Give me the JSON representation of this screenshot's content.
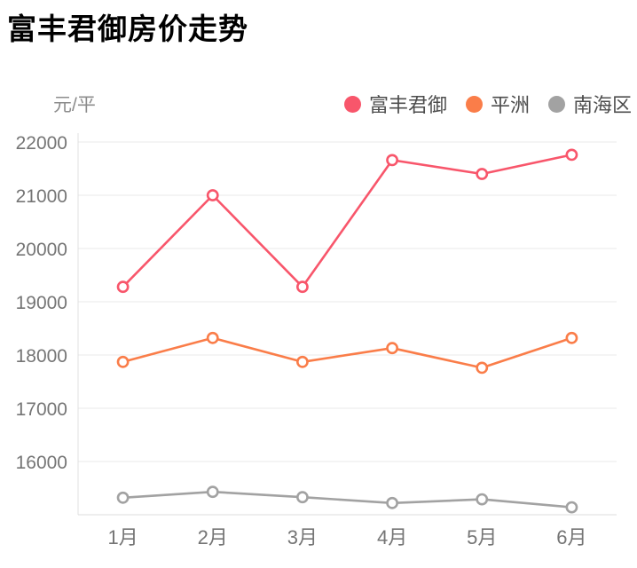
{
  "header": {
    "title": "富丰君御房价走势"
  },
  "chart_data": {
    "type": "line",
    "title": "富丰君御房价走势",
    "xlabel": "",
    "ylabel": "元/平",
    "categories": [
      "1月",
      "2月",
      "3月",
      "4月",
      "5月",
      "6月"
    ],
    "series": [
      {
        "name": "富丰君御",
        "color": "#F8566B",
        "values": [
          19280,
          21000,
          19280,
          21660,
          21400,
          21760
        ]
      },
      {
        "name": "平洲",
        "color": "#FA7D49",
        "values": [
          17870,
          18320,
          17870,
          18130,
          17760,
          18320
        ]
      },
      {
        "name": "南海区",
        "color": "#A2A2A2",
        "values": [
          15320,
          15430,
          15330,
          15220,
          15290,
          15140
        ]
      }
    ],
    "ylim": [
      15000,
      22000
    ],
    "yticks": [
      16000,
      17000,
      18000,
      19000,
      20000,
      21000,
      22000
    ],
    "grid": true,
    "legend_position": "top-right",
    "marker": "open-circle"
  },
  "colors": {
    "grid_line": "#E8E8E8",
    "y_axis_line": "#E0E0E0",
    "x_axis_line": "#DCDCDC",
    "tick_text": "#757575",
    "legend_text": "#4D4D4D",
    "title_text": "#000000",
    "unit_text": "#8C8C8C",
    "background": "#FFFFFF"
  }
}
